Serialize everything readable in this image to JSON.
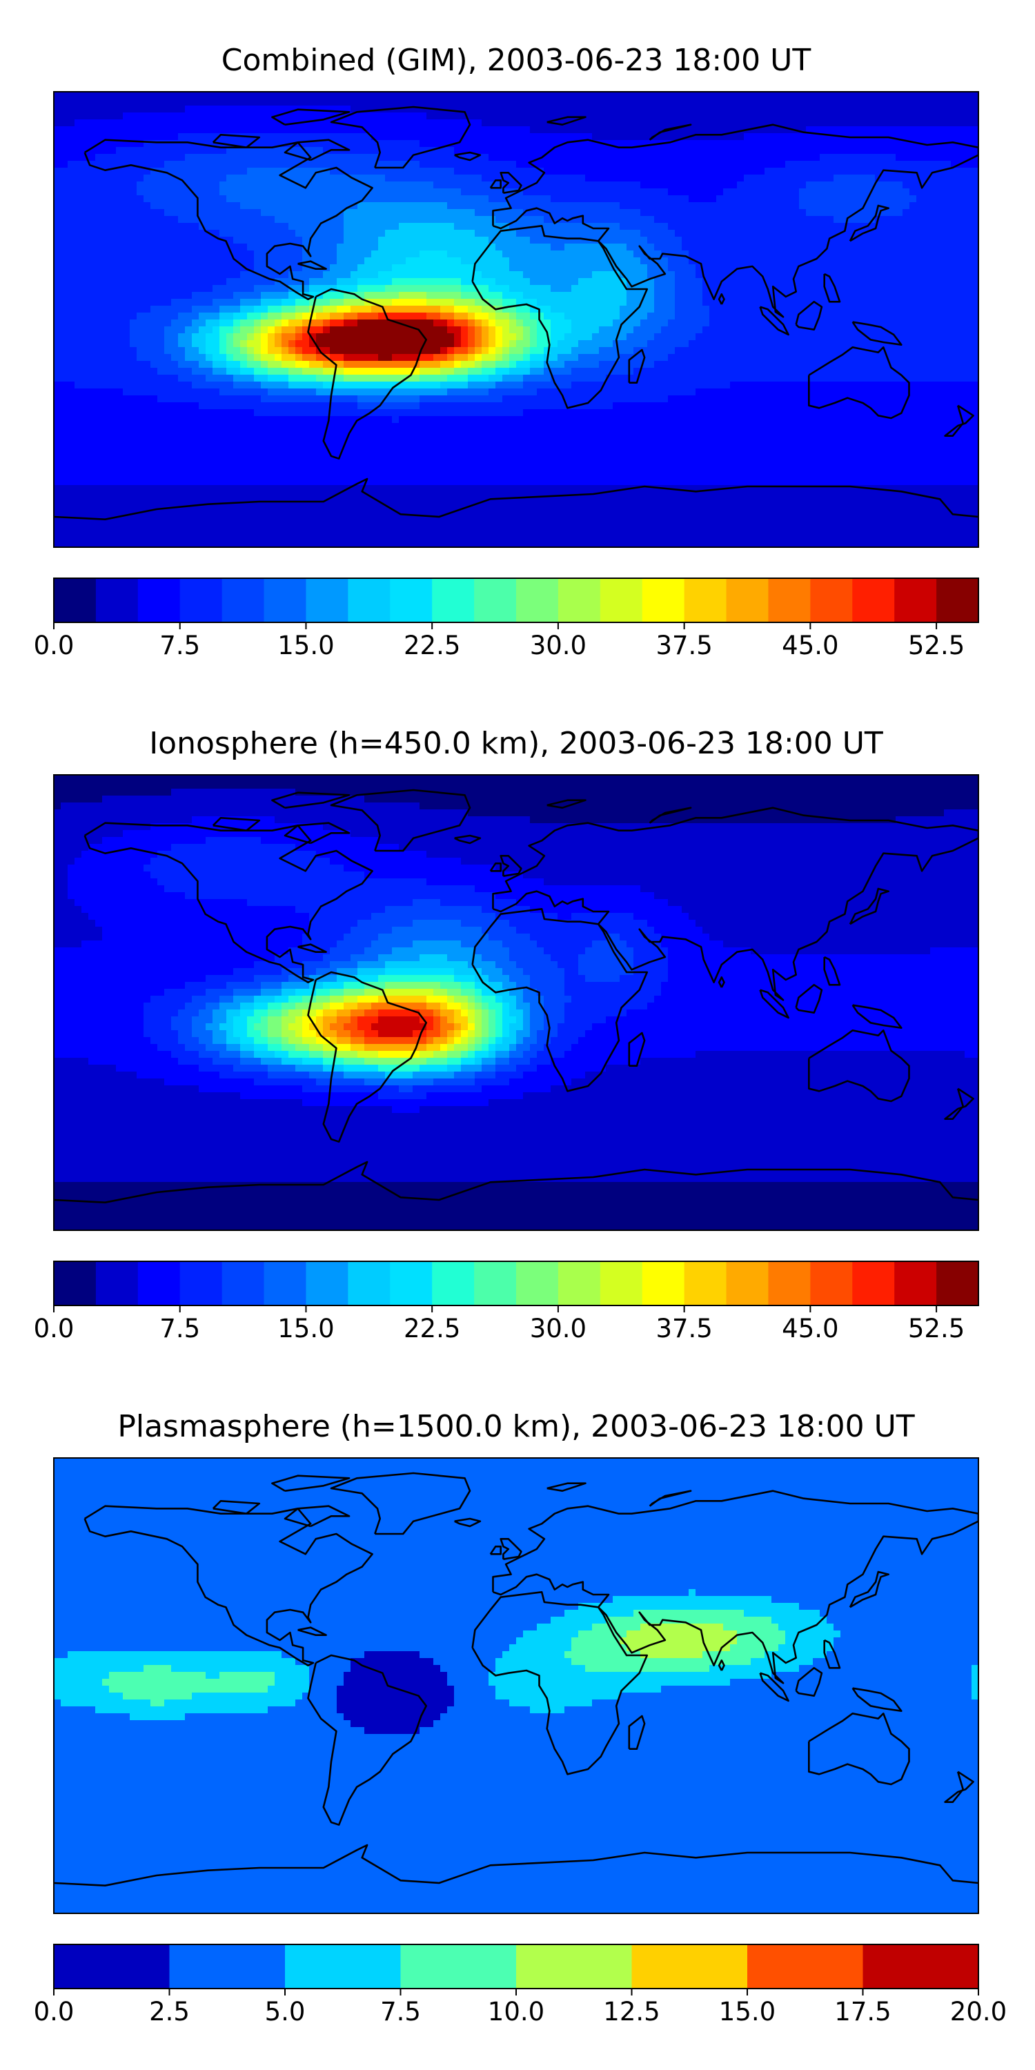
{
  "panels": [
    {
      "title": "Combined (GIM), 2003-06-23 18:00 UT",
      "levels": [
        0.0,
        2.5,
        5.0,
        7.5,
        10.0,
        12.5,
        15.0,
        17.5,
        20.0,
        22.5,
        25.0,
        27.5,
        30.0,
        32.5,
        35.0,
        37.5,
        40.0,
        42.5,
        45.0,
        47.5,
        50.0,
        52.5,
        55.0
      ],
      "colorbar_ticks": [
        "0.0",
        "7.5",
        "15.0",
        "22.5",
        "30.0",
        "37.5",
        "45.0",
        "52.5"
      ],
      "colorbar_tick_values": [
        0.0,
        7.5,
        15.0,
        22.5,
        30.0,
        37.5,
        45.0,
        52.5
      ],
      "colorbar_range": [
        0,
        55
      ],
      "field": {
        "base": 9,
        "components": [
          {
            "lon": -40,
            "lat": -8,
            "sx": 32,
            "sy": 11,
            "amp": 44
          },
          {
            "lon": -85,
            "lat": -10,
            "sx": 28,
            "sy": 10,
            "amp": 22
          },
          {
            "lon": -30,
            "lat": 25,
            "sx": 35,
            "sy": 20,
            "amp": 12
          },
          {
            "lon": -100,
            "lat": 55,
            "sx": 45,
            "sy": 15,
            "amp": 7
          },
          {
            "lon": 40,
            "lat": 15,
            "sx": 18,
            "sy": 20,
            "amp": 8
          },
          {
            "lon": 130,
            "lat": 50,
            "sx": 30,
            "sy": 12,
            "amp": 5
          }
        ],
        "lat_falloff": -0.06
      }
    },
    {
      "title": "Ionosphere  (h=450.0 km), 2003-06-23 18:00 UT",
      "levels": [
        0.0,
        2.5,
        5.0,
        7.5,
        10.0,
        12.5,
        15.0,
        17.5,
        20.0,
        22.5,
        25.0,
        27.5,
        30.0,
        32.5,
        35.0,
        37.5,
        40.0,
        42.5,
        45.0,
        47.5,
        50.0,
        52.5,
        55.0
      ],
      "colorbar_ticks": [
        "0.0",
        "7.5",
        "15.0",
        "22.5",
        "30.0",
        "37.5",
        "45.0",
        "52.5"
      ],
      "colorbar_tick_values": [
        0.0,
        7.5,
        15.0,
        22.5,
        30.0,
        37.5,
        45.0,
        52.5
      ],
      "colorbar_range": [
        0,
        55
      ],
      "field": {
        "base": 6,
        "components": [
          {
            "lon": -40,
            "lat": -10,
            "sx": 26,
            "sy": 12,
            "amp": 38
          },
          {
            "lon": -85,
            "lat": -10,
            "sx": 28,
            "sy": 11,
            "amp": 20
          },
          {
            "lon": -30,
            "lat": 20,
            "sx": 30,
            "sy": 18,
            "amp": 10
          },
          {
            "lon": -110,
            "lat": 55,
            "sx": 40,
            "sy": 14,
            "amp": 6
          },
          {
            "lon": 40,
            "lat": 20,
            "sx": 15,
            "sy": 15,
            "amp": 5
          }
        ],
        "lat_falloff": -0.05
      }
    },
    {
      "title": "Plasmasphere (h=1500.0 km), 2003-06-23 18:00 UT",
      "levels": [
        0.0,
        2.5,
        5.0,
        7.5,
        10.0,
        12.5,
        15.0,
        17.5,
        20.0
      ],
      "colorbar_ticks": [
        "0.0",
        "2.5",
        "5.0",
        "7.5",
        "10.0",
        "12.5",
        "15.0",
        "17.5",
        "20.0"
      ],
      "colorbar_tick_values": [
        0.0,
        2.5,
        5.0,
        7.5,
        10.0,
        12.5,
        15.0,
        17.5,
        20.0
      ],
      "colorbar_range": [
        0,
        20
      ],
      "field": {
        "base": 2.8,
        "components": [
          {
            "lon": 55,
            "lat": 18,
            "sx": 30,
            "sy": 11,
            "amp": 6.5
          },
          {
            "lon": 90,
            "lat": 20,
            "sx": 30,
            "sy": 11,
            "amp": 3.5
          },
          {
            "lon": -140,
            "lat": 0,
            "sx": 16,
            "sy": 9,
            "amp": 6
          },
          {
            "lon": -100,
            "lat": 2,
            "sx": 16,
            "sy": 9,
            "amp": 5
          },
          {
            "lon": -170,
            "lat": 5,
            "sx": 12,
            "sy": 9,
            "amp": 3
          },
          {
            "lon": 10,
            "lat": 0,
            "sx": 25,
            "sy": 12,
            "amp": 3
          },
          {
            "lon": 150,
            "lat": -10,
            "sx": 25,
            "sy": 10,
            "amp": 2
          },
          {
            "lon": -45,
            "lat": -2,
            "sx": 15,
            "sy": 8,
            "amp": -3.5
          },
          {
            "lon": 30,
            "lat": -55,
            "sx": 80,
            "sy": 8,
            "amp": 0.8
          }
        ],
        "lat_falloff": 0
      }
    }
  ],
  "colors": {
    "jet22": [
      "#00007f",
      "#0000cc",
      "#0000ff",
      "#0022ff",
      "#0044ff",
      "#0066ff",
      "#0099ff",
      "#00ccff",
      "#00e0ff",
      "#21ffd4",
      "#4cffaa",
      "#7bff7b",
      "#a9ff4c",
      "#d4ff21",
      "#ffff00",
      "#ffd200",
      "#ffaa00",
      "#ff7b00",
      "#ff4c00",
      "#ff1f00",
      "#cc0000",
      "#870000"
    ],
    "jet8": [
      "#0000bf",
      "#0066ff",
      "#00d4ff",
      "#4cffb2",
      "#b2ff4c",
      "#ffd000",
      "#ff5000",
      "#c00000"
    ],
    "coastline": "#000000"
  },
  "map": {
    "lon_range": [
      -180,
      180
    ],
    "lat_range": [
      -90,
      90
    ]
  }
}
